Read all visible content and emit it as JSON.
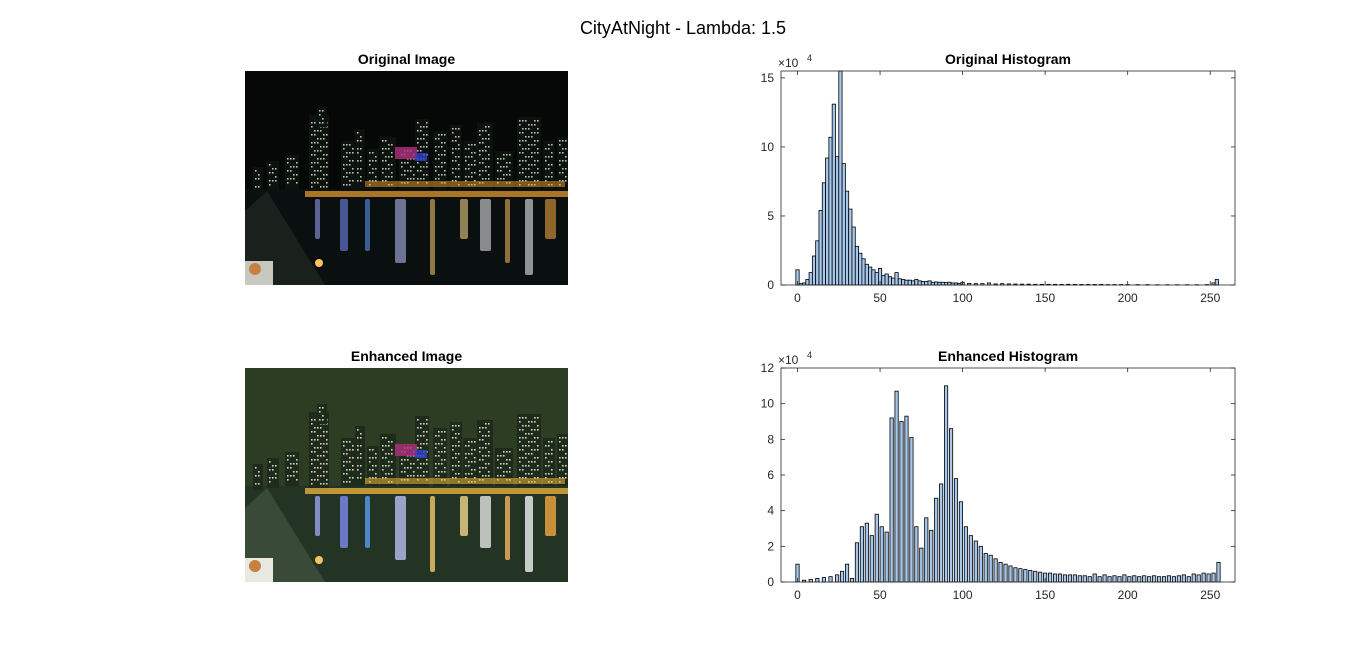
{
  "figure": {
    "title": "CityAtNight - Lambda: 1.5"
  },
  "images": [
    {
      "title": "Original Image",
      "variant": "original",
      "palette": {
        "sky": "#050806",
        "water": "#0a0f10",
        "accent": "#f0a030"
      }
    },
    {
      "title": "Enhanced Image",
      "variant": "enhanced",
      "palette": {
        "sky": "#2c3d24",
        "water": "#243424",
        "accent": "#ffc040"
      }
    }
  ],
  "chart_data": [
    {
      "type": "bar",
      "title": "Original Histogram",
      "xlabel": "",
      "ylabel": "",
      "xlim": [
        -10,
        265
      ],
      "ylim": [
        0,
        15.5
      ],
      "y_scale_label": "×10",
      "y_scale_exponent": "4",
      "xticks": [
        "0",
        "50",
        "100",
        "150",
        "200",
        "250"
      ],
      "yticks": [
        "0",
        "5",
        "10",
        "15"
      ],
      "bin_width": 2,
      "bar_color": "#a6c8ec",
      "bins": [
        [
          0,
          1.1
        ],
        [
          2,
          0.1
        ],
        [
          4,
          0.15
        ],
        [
          6,
          0.4
        ],
        [
          8,
          0.9
        ],
        [
          10,
          2.1
        ],
        [
          12,
          3.2
        ],
        [
          14,
          5.4
        ],
        [
          16,
          7.4
        ],
        [
          18,
          9.2
        ],
        [
          20,
          10.7
        ],
        [
          22,
          13.1
        ],
        [
          24,
          9.3
        ],
        [
          26,
          15.6
        ],
        [
          28,
          8.8
        ],
        [
          30,
          6.8
        ],
        [
          32,
          5.5
        ],
        [
          34,
          4.2
        ],
        [
          36,
          2.8
        ],
        [
          38,
          2.3
        ],
        [
          40,
          1.9
        ],
        [
          42,
          1.5
        ],
        [
          44,
          1.3
        ],
        [
          46,
          1.1
        ],
        [
          48,
          0.9
        ],
        [
          50,
          1.2
        ],
        [
          52,
          0.7
        ],
        [
          54,
          0.8
        ],
        [
          56,
          0.6
        ],
        [
          58,
          0.5
        ],
        [
          60,
          0.9
        ],
        [
          62,
          0.45
        ],
        [
          64,
          0.4
        ],
        [
          66,
          0.35
        ],
        [
          68,
          0.35
        ],
        [
          70,
          0.3
        ],
        [
          72,
          0.4
        ],
        [
          74,
          0.3
        ],
        [
          76,
          0.25
        ],
        [
          78,
          0.25
        ],
        [
          80,
          0.3
        ],
        [
          82,
          0.2
        ],
        [
          84,
          0.22
        ],
        [
          86,
          0.2
        ],
        [
          88,
          0.2
        ],
        [
          90,
          0.18
        ],
        [
          92,
          0.2
        ],
        [
          94,
          0.15
        ],
        [
          96,
          0.15
        ],
        [
          98,
          0.12
        ],
        [
          100,
          0.2
        ],
        [
          104,
          0.12
        ],
        [
          108,
          0.1
        ],
        [
          112,
          0.1
        ],
        [
          116,
          0.15
        ],
        [
          120,
          0.08
        ],
        [
          124,
          0.1
        ],
        [
          128,
          0.08
        ],
        [
          132,
          0.07
        ],
        [
          136,
          0.06
        ],
        [
          140,
          0.06
        ],
        [
          144,
          0.05
        ],
        [
          148,
          0.05
        ],
        [
          152,
          0.05
        ],
        [
          156,
          0.05
        ],
        [
          160,
          0.04
        ],
        [
          164,
          0.05
        ],
        [
          168,
          0.04
        ],
        [
          172,
          0.04
        ],
        [
          176,
          0.04
        ],
        [
          180,
          0.04
        ],
        [
          184,
          0.04
        ],
        [
          188,
          0.03
        ],
        [
          192,
          0.03
        ],
        [
          196,
          0.03
        ],
        [
          200,
          0.03
        ],
        [
          206,
          0.03
        ],
        [
          212,
          0.03
        ],
        [
          218,
          0.02
        ],
        [
          224,
          0.02
        ],
        [
          230,
          0.02
        ],
        [
          236,
          0.02
        ],
        [
          242,
          0.02
        ],
        [
          248,
          0.03
        ],
        [
          252,
          0.15
        ],
        [
          254,
          0.4
        ]
      ]
    },
    {
      "type": "bar",
      "title": "Enhanced Histogram",
      "xlabel": "",
      "ylabel": "",
      "xlim": [
        -10,
        265
      ],
      "ylim": [
        0,
        12
      ],
      "y_scale_label": "×10",
      "y_scale_exponent": "4",
      "xticks": [
        "0",
        "50",
        "100",
        "150",
        "200",
        "250"
      ],
      "yticks": [
        "0",
        "2",
        "4",
        "6",
        "8",
        "10",
        "12"
      ],
      "bin_width": 2,
      "bar_color": "#a6c8ec",
      "bins": [
        [
          0,
          1.0
        ],
        [
          4,
          0.1
        ],
        [
          8,
          0.15
        ],
        [
          12,
          0.2
        ],
        [
          16,
          0.25
        ],
        [
          20,
          0.3
        ],
        [
          24,
          0.4
        ],
        [
          27,
          0.6
        ],
        [
          30,
          1.0
        ],
        [
          33,
          0.2
        ],
        [
          36,
          2.2
        ],
        [
          39,
          3.1
        ],
        [
          42,
          3.3
        ],
        [
          45,
          2.6
        ],
        [
          48,
          3.8
        ],
        [
          51,
          3.1
        ],
        [
          54,
          2.8
        ],
        [
          57,
          9.2
        ],
        [
          60,
          10.7
        ],
        [
          63,
          9.0
        ],
        [
          66,
          9.3
        ],
        [
          69,
          8.1
        ],
        [
          72,
          3.1
        ],
        [
          75,
          1.9
        ],
        [
          78,
          3.6
        ],
        [
          81,
          2.9
        ],
        [
          84,
          4.7
        ],
        [
          87,
          5.5
        ],
        [
          90,
          11.0
        ],
        [
          93,
          8.6
        ],
        [
          96,
          5.8
        ],
        [
          99,
          4.5
        ],
        [
          102,
          3.1
        ],
        [
          105,
          2.6
        ],
        [
          108,
          2.3
        ],
        [
          111,
          2.0
        ],
        [
          114,
          1.6
        ],
        [
          117,
          1.5
        ],
        [
          120,
          1.3
        ],
        [
          123,
          1.1
        ],
        [
          126,
          1.0
        ],
        [
          129,
          0.9
        ],
        [
          132,
          0.8
        ],
        [
          135,
          0.75
        ],
        [
          138,
          0.7
        ],
        [
          141,
          0.65
        ],
        [
          144,
          0.6
        ],
        [
          147,
          0.55
        ],
        [
          150,
          0.5
        ],
        [
          153,
          0.5
        ],
        [
          156,
          0.45
        ],
        [
          159,
          0.45
        ],
        [
          162,
          0.4
        ],
        [
          165,
          0.4
        ],
        [
          168,
          0.4
        ],
        [
          171,
          0.35
        ],
        [
          174,
          0.35
        ],
        [
          177,
          0.3
        ],
        [
          180,
          0.45
        ],
        [
          183,
          0.3
        ],
        [
          186,
          0.4
        ],
        [
          189,
          0.3
        ],
        [
          192,
          0.35
        ],
        [
          195,
          0.3
        ],
        [
          198,
          0.4
        ],
        [
          201,
          0.3
        ],
        [
          204,
          0.35
        ],
        [
          207,
          0.3
        ],
        [
          210,
          0.35
        ],
        [
          213,
          0.3
        ],
        [
          216,
          0.35
        ],
        [
          219,
          0.3
        ],
        [
          222,
          0.3
        ],
        [
          225,
          0.35
        ],
        [
          228,
          0.3
        ],
        [
          231,
          0.35
        ],
        [
          234,
          0.4
        ],
        [
          237,
          0.3
        ],
        [
          240,
          0.45
        ],
        [
          243,
          0.4
        ],
        [
          246,
          0.5
        ],
        [
          249,
          0.45
        ],
        [
          252,
          0.5
        ],
        [
          255,
          1.1
        ]
      ]
    }
  ]
}
